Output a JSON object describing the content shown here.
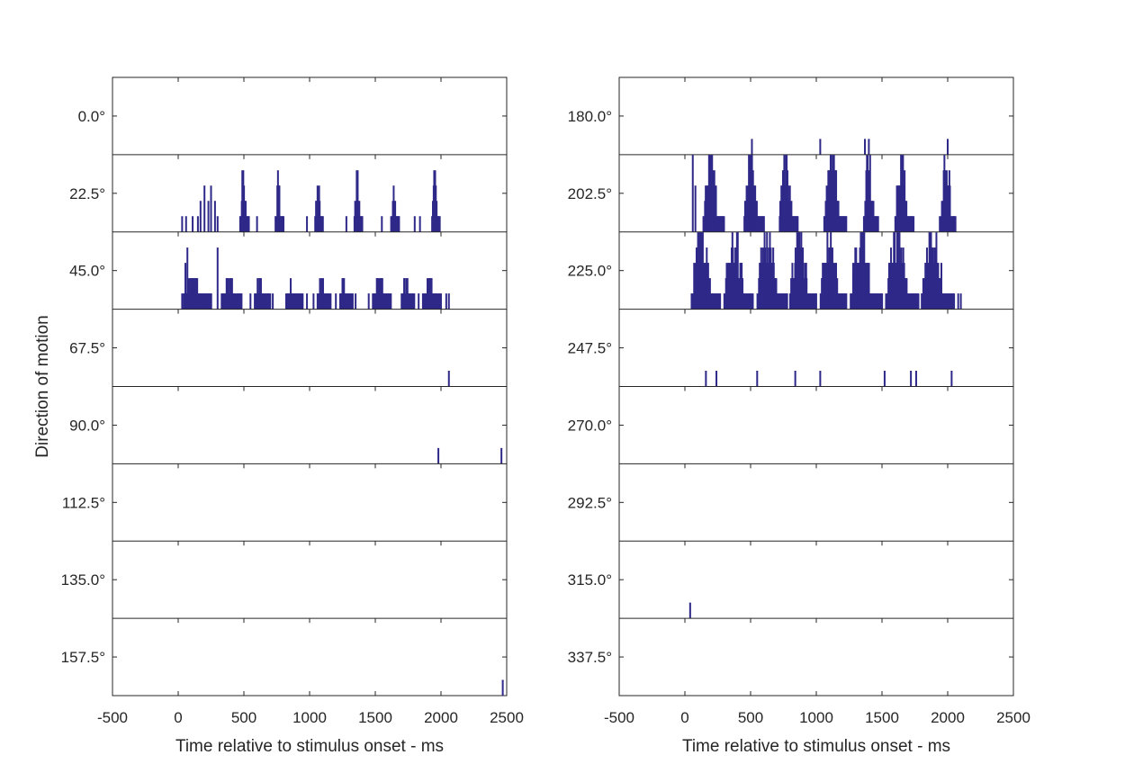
{
  "colors": {
    "spike": "#2e2888",
    "axis": "#262626",
    "text": "#262626"
  },
  "chart_data": [
    {
      "type": "raster",
      "panel": "left",
      "xlabel": "Time relative to stimulus onset - ms",
      "ylabel": "Direction of motion",
      "xlim": [
        -500,
        2500
      ],
      "xticks": [
        -500,
        0,
        500,
        1000,
        1500,
        2000,
        2500
      ],
      "xtick_labels": [
        "-500",
        "0",
        "500",
        "1000",
        "1500",
        "2000",
        "2500"
      ],
      "rows": [
        {
          "label": "0.0°",
          "spikes": [],
          "bursts": []
        },
        {
          "label": "22.5°",
          "spikes": [
            [
              30,
              1
            ],
            [
              60,
              1
            ],
            [
              110,
              1
            ],
            [
              150,
              1
            ],
            [
              170,
              2
            ],
            [
              200,
              3
            ],
            [
              230,
              2
            ],
            [
              250,
              3
            ],
            [
              280,
              2
            ],
            [
              300,
              1
            ],
            [
              600,
              1
            ],
            [
              980,
              1
            ],
            [
              1280,
              1
            ],
            [
              1550,
              1
            ],
            [
              1800,
              1
            ],
            [
              1840,
              1
            ]
          ],
          "bursts": [
            [
              470,
              540,
              4
            ],
            [
              740,
              800,
              4
            ],
            [
              1040,
              1100,
              3
            ],
            [
              1340,
              1400,
              4
            ],
            [
              1620,
              1680,
              3
            ],
            [
              1930,
              1990,
              4
            ]
          ]
        },
        {
          "label": "45.0°",
          "spikes": [
            [
              30,
              1
            ],
            [
              55,
              3
            ],
            [
              70,
              4
            ],
            [
              100,
              1
            ],
            [
              140,
              1
            ],
            [
              170,
              1
            ],
            [
              200,
              1
            ],
            [
              230,
              1
            ],
            [
              300,
              4
            ],
            [
              400,
              1
            ],
            [
              550,
              1
            ],
            [
              720,
              1
            ],
            [
              980,
              1
            ],
            [
              1030,
              1
            ],
            [
              1160,
              1
            ],
            [
              1200,
              1
            ],
            [
              1350,
              1
            ],
            [
              1450,
              1
            ],
            [
              1510,
              1
            ],
            [
              1560,
              1
            ],
            [
              1750,
              1
            ],
            [
              1830,
              1
            ],
            [
              1950,
              1
            ],
            [
              2040,
              1
            ],
            [
              2060,
              1
            ]
          ],
          "bursts": [
            [
              40,
              250,
              2
            ],
            [
              330,
              480,
              2
            ],
            [
              580,
              700,
              2
            ],
            [
              820,
              950,
              2
            ],
            [
              1060,
              1150,
              2
            ],
            [
              1230,
              1330,
              2
            ],
            [
              1480,
              1620,
              2
            ],
            [
              1700,
              1800,
              2
            ],
            [
              1860,
              2000,
              2
            ]
          ]
        },
        {
          "label": "67.5°",
          "spikes": [
            [
              2060,
              1
            ]
          ],
          "bursts": []
        },
        {
          "label": "90.0°",
          "spikes": [
            [
              1980,
              1
            ],
            [
              2460,
              1
            ]
          ],
          "bursts": []
        },
        {
          "label": "112.5°",
          "spikes": [],
          "bursts": []
        },
        {
          "label": "135.0°",
          "spikes": [],
          "bursts": []
        },
        {
          "label": "157.5°",
          "spikes": [
            [
              2470,
              1
            ]
          ],
          "bursts": []
        }
      ]
    },
    {
      "type": "raster",
      "panel": "right",
      "xlabel": "Time relative to stimulus onset - ms",
      "ylabel": "",
      "xlim": [
        -500,
        2500
      ],
      "xticks": [
        -500,
        0,
        500,
        1000,
        1500,
        2000,
        2500
      ],
      "xtick_labels": [
        "-500",
        "0",
        "500",
        "1000",
        "1500",
        "2000",
        "2500"
      ],
      "rows": [
        {
          "label": "180.0°",
          "spikes": [
            [
              510,
              1
            ],
            [
              1030,
              1
            ],
            [
              1370,
              1
            ],
            [
              1400,
              1
            ],
            [
              2000,
              1
            ]
          ],
          "bursts": []
        },
        {
          "label": "202.5°",
          "spikes": [
            [
              60,
              5
            ],
            [
              80,
              3
            ],
            [
              1940,
              1
            ]
          ],
          "bursts": [
            [
              140,
              300,
              5
            ],
            [
              450,
              600,
              5
            ],
            [
              720,
              860,
              5
            ],
            [
              1060,
              1230,
              5
            ],
            [
              1360,
              1470,
              5
            ],
            [
              1600,
              1740,
              5
            ],
            [
              1950,
              2060,
              5
            ]
          ]
        },
        {
          "label": "225.0°",
          "spikes": [
            [
              2080,
              1
            ],
            [
              2100,
              1
            ]
          ],
          "bursts": [
            [
              50,
              270,
              5
            ],
            [
              300,
              520,
              5
            ],
            [
              550,
              780,
              5
            ],
            [
              800,
              1000,
              5
            ],
            [
              1030,
              1230,
              5
            ],
            [
              1260,
              1500,
              5
            ],
            [
              1530,
              1780,
              5
            ],
            [
              1800,
              2050,
              5
            ]
          ]
        },
        {
          "label": "247.5°",
          "spikes": [
            [
              160,
              1
            ],
            [
              240,
              1
            ],
            [
              550,
              1
            ],
            [
              840,
              1
            ],
            [
              1030,
              1
            ],
            [
              1520,
              1
            ],
            [
              1720,
              1
            ],
            [
              1760,
              1
            ],
            [
              2030,
              1
            ]
          ],
          "bursts": []
        },
        {
          "label": "270.0°",
          "spikes": [],
          "bursts": []
        },
        {
          "label": "292.5°",
          "spikes": [],
          "bursts": []
        },
        {
          "label": "315.0°",
          "spikes": [
            [
              40,
              1
            ]
          ],
          "bursts": []
        },
        {
          "label": "337.5°",
          "spikes": [],
          "bursts": []
        }
      ]
    }
  ]
}
